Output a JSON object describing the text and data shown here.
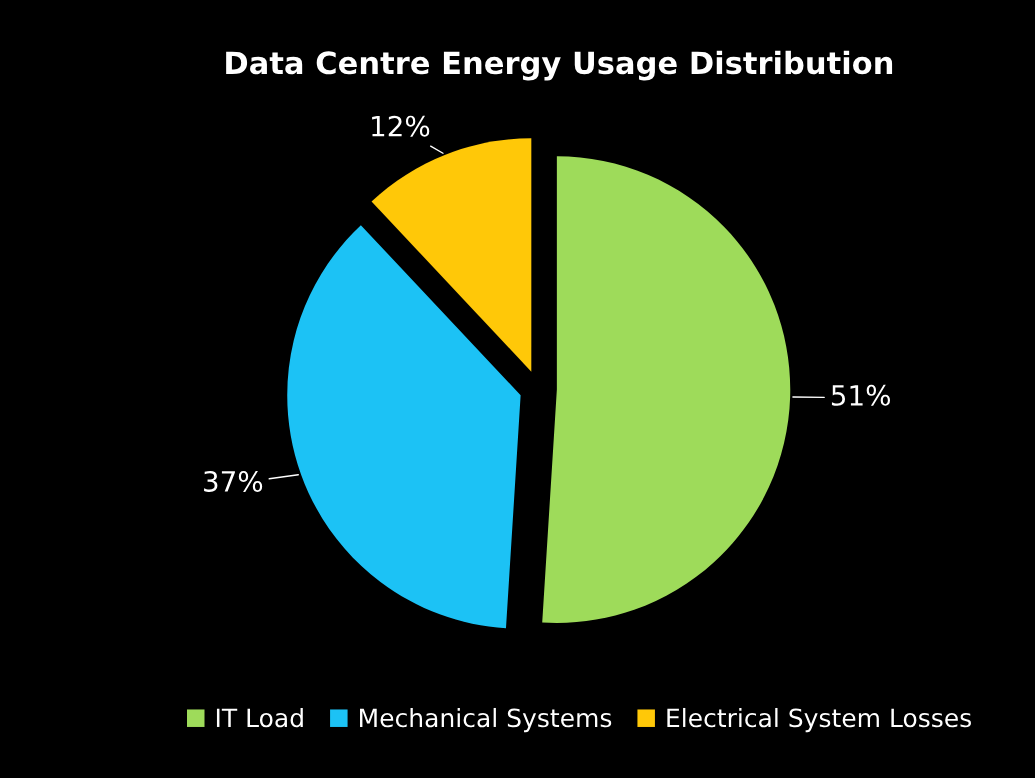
{
  "chart_data": {
    "type": "pie",
    "title": "Data Centre Energy Usage Distribution",
    "categories": [
      "IT Load",
      "Mechanical Systems",
      "Electrical System Losses"
    ],
    "values": [
      51,
      37,
      12
    ],
    "colors": [
      "#9edb5a",
      "#1cc2f5",
      "#ffc808"
    ],
    "value_labels": [
      "51%",
      "37%",
      "12%"
    ],
    "legend": "bottom"
  }
}
